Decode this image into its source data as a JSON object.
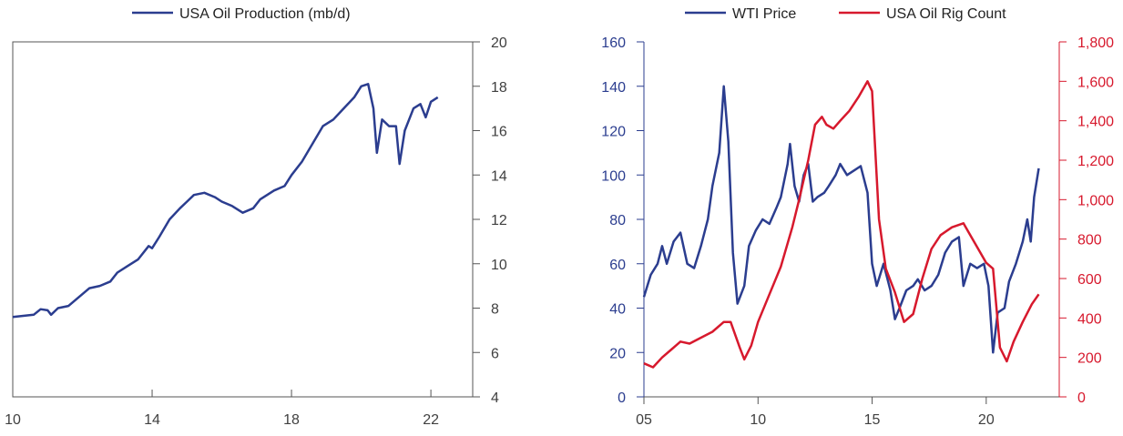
{
  "colors": {
    "blue": "#2b3d8f",
    "red": "#d7192d",
    "frame": "#555555",
    "text": "#404040"
  },
  "chart_data": [
    {
      "type": "line",
      "legend": [
        {
          "name": "USA Oil Production (mb/d)",
          "color": "#2b3d8f"
        }
      ],
      "x_ticks": [
        "10",
        "14",
        "18",
        "22"
      ],
      "xlim": [
        2010,
        2023.2
      ],
      "y_right_ticks": [
        "4",
        "6",
        "8",
        "10",
        "12",
        "14",
        "16",
        "18",
        "20"
      ],
      "ylim": [
        4,
        20
      ],
      "series": [
        {
          "name": "USA Oil Production (mb/d)",
          "color": "#2b3d8f",
          "points": [
            [
              2010.0,
              7.6
            ],
            [
              2010.3,
              7.65
            ],
            [
              2010.6,
              7.7
            ],
            [
              2010.8,
              7.95
            ],
            [
              2011.0,
              7.9
            ],
            [
              2011.1,
              7.7
            ],
            [
              2011.3,
              8.0
            ],
            [
              2011.6,
              8.1
            ],
            [
              2011.9,
              8.5
            ],
            [
              2012.2,
              8.9
            ],
            [
              2012.5,
              9.0
            ],
            [
              2012.8,
              9.2
            ],
            [
              2013.0,
              9.6
            ],
            [
              2013.3,
              9.9
            ],
            [
              2013.6,
              10.2
            ],
            [
              2013.9,
              10.8
            ],
            [
              2014.0,
              10.7
            ],
            [
              2014.2,
              11.2
            ],
            [
              2014.5,
              12.0
            ],
            [
              2014.8,
              12.5
            ],
            [
              2015.0,
              12.8
            ],
            [
              2015.2,
              13.1
            ],
            [
              2015.5,
              13.2
            ],
            [
              2015.8,
              13.0
            ],
            [
              2016.0,
              12.8
            ],
            [
              2016.3,
              12.6
            ],
            [
              2016.6,
              12.3
            ],
            [
              2016.9,
              12.5
            ],
            [
              2017.1,
              12.9
            ],
            [
              2017.5,
              13.3
            ],
            [
              2017.8,
              13.5
            ],
            [
              2018.0,
              14.0
            ],
            [
              2018.3,
              14.6
            ],
            [
              2018.6,
              15.4
            ],
            [
              2018.9,
              16.2
            ],
            [
              2019.2,
              16.5
            ],
            [
              2019.5,
              17.0
            ],
            [
              2019.8,
              17.5
            ],
            [
              2020.0,
              18.0
            ],
            [
              2020.2,
              18.1
            ],
            [
              2020.35,
              17.0
            ],
            [
              2020.45,
              15.0
            ],
            [
              2020.6,
              16.5
            ],
            [
              2020.8,
              16.2
            ],
            [
              2021.0,
              16.2
            ],
            [
              2021.1,
              14.5
            ],
            [
              2021.25,
              16.0
            ],
            [
              2021.5,
              17.0
            ],
            [
              2021.7,
              17.2
            ],
            [
              2021.85,
              16.6
            ],
            [
              2022.0,
              17.3
            ],
            [
              2022.2,
              17.5
            ]
          ]
        }
      ]
    },
    {
      "type": "line",
      "legend": [
        {
          "name": "WTI Price",
          "color": "#2b3d8f"
        },
        {
          "name": "USA Oil Rig Count",
          "color": "#d7192d"
        }
      ],
      "x_ticks": [
        "05",
        "10",
        "15",
        "20"
      ],
      "xlim": [
        2005,
        2023.2
      ],
      "y_left_ticks": [
        "0",
        "20",
        "40",
        "60",
        "80",
        "100",
        "120",
        "140",
        "160"
      ],
      "ylim_left": [
        0,
        160
      ],
      "y_right_ticks": [
        "0",
        "200",
        "400",
        "600",
        "800",
        "1,000",
        "1,200",
        "1,400",
        "1,600",
        "1,800"
      ],
      "ylim_right": [
        0,
        1800
      ],
      "series": [
        {
          "name": "WTI Price",
          "axis": "left",
          "color": "#2b3d8f",
          "points": [
            [
              2005.0,
              45
            ],
            [
              2005.3,
              55
            ],
            [
              2005.6,
              60
            ],
            [
              2005.8,
              68
            ],
            [
              2006.0,
              60
            ],
            [
              2006.3,
              70
            ],
            [
              2006.6,
              74
            ],
            [
              2006.9,
              60
            ],
            [
              2007.2,
              58
            ],
            [
              2007.5,
              68
            ],
            [
              2007.8,
              80
            ],
            [
              2008.0,
              95
            ],
            [
              2008.3,
              110
            ],
            [
              2008.5,
              140
            ],
            [
              2008.7,
              115
            ],
            [
              2008.9,
              65
            ],
            [
              2009.1,
              42
            ],
            [
              2009.4,
              50
            ],
            [
              2009.6,
              68
            ],
            [
              2009.9,
              75
            ],
            [
              2010.2,
              80
            ],
            [
              2010.5,
              78
            ],
            [
              2010.8,
              85
            ],
            [
              2011.0,
              90
            ],
            [
              2011.3,
              105
            ],
            [
              2011.4,
              114
            ],
            [
              2011.6,
              95
            ],
            [
              2011.8,
              88
            ],
            [
              2012.0,
              100
            ],
            [
              2012.2,
              105
            ],
            [
              2012.4,
              88
            ],
            [
              2012.6,
              90
            ],
            [
              2012.9,
              92
            ],
            [
              2013.1,
              95
            ],
            [
              2013.4,
              100
            ],
            [
              2013.6,
              105
            ],
            [
              2013.9,
              100
            ],
            [
              2014.2,
              102
            ],
            [
              2014.5,
              104
            ],
            [
              2014.8,
              92
            ],
            [
              2015.0,
              60
            ],
            [
              2015.2,
              50
            ],
            [
              2015.5,
              60
            ],
            [
              2015.8,
              48
            ],
            [
              2016.0,
              35
            ],
            [
              2016.2,
              40
            ],
            [
              2016.5,
              48
            ],
            [
              2016.8,
              50
            ],
            [
              2017.0,
              53
            ],
            [
              2017.3,
              48
            ],
            [
              2017.6,
              50
            ],
            [
              2017.9,
              55
            ],
            [
              2018.2,
              65
            ],
            [
              2018.5,
              70
            ],
            [
              2018.8,
              72
            ],
            [
              2019.0,
              50
            ],
            [
              2019.3,
              60
            ],
            [
              2019.6,
              58
            ],
            [
              2019.9,
              60
            ],
            [
              2020.1,
              50
            ],
            [
              2020.3,
              20
            ],
            [
              2020.5,
              38
            ],
            [
              2020.8,
              40
            ],
            [
              2021.0,
              52
            ],
            [
              2021.3,
              60
            ],
            [
              2021.6,
              70
            ],
            [
              2021.8,
              80
            ],
            [
              2021.95,
              70
            ],
            [
              2022.1,
              90
            ],
            [
              2022.3,
              103
            ]
          ]
        },
        {
          "name": "USA Oil Rig Count",
          "axis": "right",
          "color": "#d7192d",
          "points": [
            [
              2005.0,
              170
            ],
            [
              2005.4,
              150
            ],
            [
              2005.8,
              200
            ],
            [
              2006.2,
              240
            ],
            [
              2006.6,
              280
            ],
            [
              2007.0,
              270
            ],
            [
              2007.5,
              300
            ],
            [
              2008.0,
              330
            ],
            [
              2008.5,
              380
            ],
            [
              2008.8,
              380
            ],
            [
              2009.2,
              250
            ],
            [
              2009.4,
              190
            ],
            [
              2009.7,
              260
            ],
            [
              2010.0,
              380
            ],
            [
              2010.5,
              520
            ],
            [
              2011.0,
              660
            ],
            [
              2011.5,
              860
            ],
            [
              2011.8,
              1000
            ],
            [
              2012.2,
              1200
            ],
            [
              2012.5,
              1380
            ],
            [
              2012.8,
              1420
            ],
            [
              2013.0,
              1380
            ],
            [
              2013.3,
              1360
            ],
            [
              2013.6,
              1400
            ],
            [
              2014.0,
              1450
            ],
            [
              2014.4,
              1520
            ],
            [
              2014.8,
              1600
            ],
            [
              2015.0,
              1550
            ],
            [
              2015.3,
              900
            ],
            [
              2015.6,
              650
            ],
            [
              2016.0,
              530
            ],
            [
              2016.4,
              380
            ],
            [
              2016.8,
              420
            ],
            [
              2017.2,
              600
            ],
            [
              2017.6,
              750
            ],
            [
              2018.0,
              820
            ],
            [
              2018.5,
              860
            ],
            [
              2019.0,
              880
            ],
            [
              2019.5,
              780
            ],
            [
              2020.0,
              680
            ],
            [
              2020.3,
              650
            ],
            [
              2020.6,
              250
            ],
            [
              2020.9,
              180
            ],
            [
              2021.2,
              280
            ],
            [
              2021.6,
              380
            ],
            [
              2022.0,
              470
            ],
            [
              2022.3,
              520
            ]
          ]
        }
      ]
    }
  ]
}
